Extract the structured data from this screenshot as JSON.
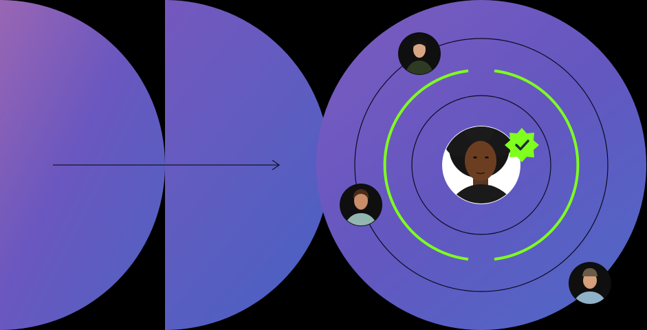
{
  "colors": {
    "background": "#000000",
    "gradient_start": "#9566b8",
    "gradient_mid": "#6a58c0",
    "gradient_end": "#4d66c4",
    "accent_green": "#7fff1e",
    "ring_line": "#0a0a14",
    "avatar_bg": "#111111",
    "center_avatar_bg": "#ffffff"
  },
  "illustration": {
    "shapes": [
      "half-disc-left",
      "half-disc-middle",
      "full-disc-right"
    ],
    "arrow_direction": "right",
    "badge_icon": "verified-check-icon",
    "people": [
      {
        "name_key": "center-person",
        "role": "verified-main-profile"
      },
      {
        "name_key": "person-top",
        "role": "connection"
      },
      {
        "name_key": "person-left",
        "role": "connection"
      },
      {
        "name_key": "person-bottom-right",
        "role": "connection"
      }
    ]
  }
}
